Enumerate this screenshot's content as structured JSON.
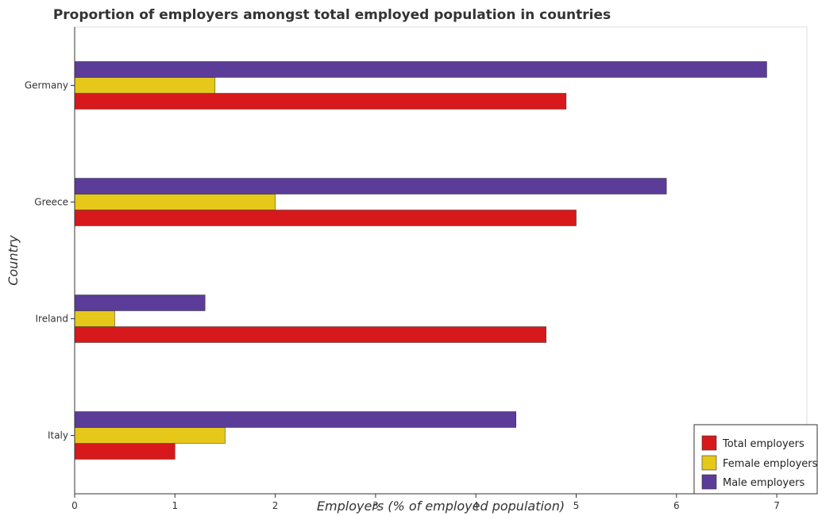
{
  "chart_data": {
    "type": "bar",
    "orientation": "horizontal",
    "title": "Proportion of employers amongst total employed population in countries",
    "xlabel": "Employers (% of employed population)",
    "ylabel": "Country",
    "categories": [
      "Germany",
      "Greece",
      "Ireland",
      "Italy"
    ],
    "series": [
      {
        "name": "Total employers",
        "color": "#d7191c",
        "values": [
          4.9,
          5.0,
          4.7,
          1.0
        ]
      },
      {
        "name": "Female employers",
        "color": "#e5c81a",
        "values": [
          1.4,
          2.0,
          0.4,
          1.5
        ]
      },
      {
        "name": "Male employers",
        "color": "#5b3c98",
        "values": [
          6.9,
          5.9,
          1.3,
          4.4
        ]
      }
    ],
    "xlim": [
      0,
      7.3
    ],
    "xticks": [
      "0",
      "1",
      "2",
      "3",
      "4",
      "5",
      "6",
      "7"
    ],
    "grid": false,
    "legend_position": "bottom-right"
  }
}
